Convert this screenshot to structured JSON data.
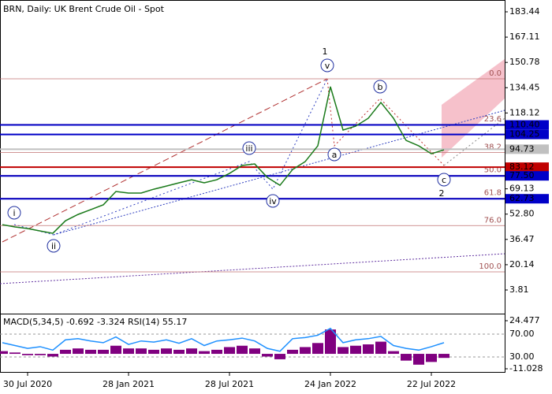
{
  "chart_data": [
    {
      "type": "line",
      "title": "BRN, Daily:  UK Brent Crude Oil - Spot",
      "categories": [
        null,
        null,
        "30 Jul 2020",
        null,
        null,
        null,
        null,
        null,
        null,
        null,
        "28 Jan 2021",
        null,
        null,
        null,
        null,
        null,
        null,
        null,
        "28 Jul 2021",
        null,
        null,
        null,
        null,
        null,
        null,
        null,
        "24 Jan 2022",
        null,
        null,
        null,
        null,
        null,
        null,
        null,
        "22 Jul 2022",
        null
      ],
      "values": [
        46.0,
        44.5,
        43.5,
        41.9,
        40.4,
        48.5,
        52.6,
        55.7,
        58.8,
        67.4,
        66.4,
        66.4,
        68.9,
        70.9,
        73.0,
        75.0,
        73.0,
        75.0,
        79.1,
        84.2,
        85.2,
        76.5,
        71.4,
        81.6,
        86.7,
        96.9,
        135.1,
        107.1,
        109.6,
        114.7,
        124.9,
        114.7,
        100.4,
        96.9,
        91.8,
        94.3
      ],
      "color": "#1a7a1a",
      "ylim": [
        -11.46,
        190.06
      ],
      "yticks": [
        183.44,
        167.11,
        150.78,
        134.45,
        118.12,
        69.13,
        {
          "value": 52.8,
          "label": "52.80"
        },
        36.47,
        20.14,
        3.81
      ],
      "levels": [
        {
          "value": 110.4,
          "label": "110.40",
          "color": "#0000c8"
        },
        {
          "value": 104.25,
          "label": "104.25",
          "color": "#0000c8"
        },
        {
          "value": 94.73,
          "label": "94.73",
          "color": "#c0c0c0"
        },
        {
          "value": 83.12,
          "label": "83.12",
          "color": "#c00000"
        },
        {
          "value": 77.5,
          "label": "77.50",
          "color": "#0000c8"
        },
        {
          "value": 62.73,
          "label": "62.73",
          "color": "#0000c8"
        }
      ],
      "fib_levels": [
        {
          "label": "0.0",
          "value": 140.2
        },
        {
          "label": "23.6",
          "value": 110.8
        },
        {
          "label": "38.2",
          "value": 92.6
        },
        {
          "label": "50.0",
          "value": 77.85
        },
        {
          "label": "61.8",
          "value": 63.1
        },
        {
          "label": "76.0",
          "value": 45.4
        },
        {
          "label": "100.0",
          "value": 15.5
        }
      ],
      "wave_labels": [
        "1",
        "2",
        "i",
        "ii",
        "iii",
        "iv",
        "v",
        "a",
        "b",
        "c"
      ]
    },
    {
      "type": "macd",
      "title": "MACD(5,34,5) -0.692 -3.324 RSI(14) 55.17",
      "series": [
        {
          "color": "#800080",
          "values": [
            2,
            1,
            -1,
            -1,
            -2,
            3,
            4,
            3,
            3,
            6,
            4,
            4,
            3,
            4,
            3,
            4,
            2,
            3,
            5,
            6,
            4,
            -2,
            -4,
            3,
            5,
            8,
            18,
            5,
            6,
            7,
            9,
            2,
            -5,
            -8,
            -6,
            -3
          ]
        },
        {
          "color": "#1e90ff",
          "axis": "y2",
          "values": [
            55,
            50,
            45,
            48,
            42,
            60,
            62,
            58,
            55,
            65,
            52,
            58,
            56,
            60,
            54,
            62,
            50,
            58,
            60,
            63,
            58,
            45,
            40,
            62,
            64,
            68,
            80,
            55,
            60,
            62,
            66,
            50,
            45,
            42,
            48,
            55
          ]
        }
      ],
      "ylim": [
        -13.36,
        28.55
      ],
      "yticks": [
        24.477,
        -11.028
      ],
      "y2lim": [
        3.8,
        103.1
      ],
      "y2ticks": [
        {
          "value": 70,
          "label": "70.00"
        },
        {
          "value": 30,
          "label": "30.00"
        }
      ]
    }
  ]
}
